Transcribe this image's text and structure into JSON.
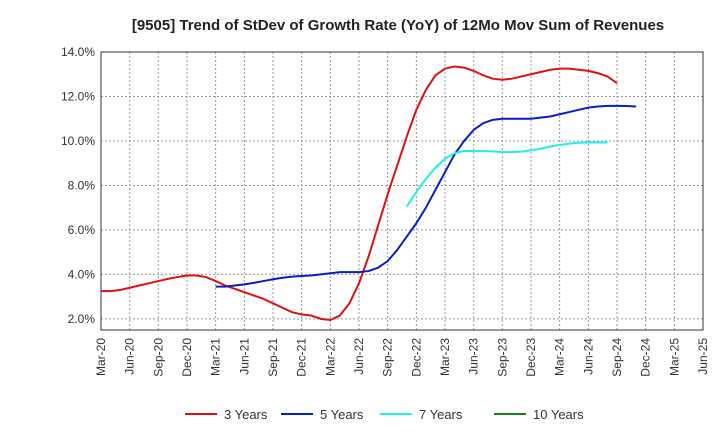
{
  "chart_data": {
    "type": "line",
    "title": "[9505]  Trend of StDev of Growth Rate (YoY) of 12Mo Mov Sum of Revenues",
    "xlabel": "",
    "ylabel": "",
    "ylim": [
      1.5,
      14.0
    ],
    "grid": true,
    "legend_position": "bottom",
    "x_ticks": [
      "Mar-20",
      "Jun-20",
      "Sep-20",
      "Dec-20",
      "Mar-21",
      "Jun-21",
      "Sep-21",
      "Dec-21",
      "Mar-22",
      "Jun-22",
      "Sep-22",
      "Dec-22",
      "Mar-23",
      "Jun-23",
      "Sep-23",
      "Dec-23",
      "Mar-24",
      "Jun-24",
      "Sep-24",
      "Dec-24",
      "Mar-25",
      "Jun-25"
    ],
    "y_ticks": [
      {
        "value": 2.0,
        "label": "2.0%"
      },
      {
        "value": 4.0,
        "label": "4.0%"
      },
      {
        "value": 6.0,
        "label": "6.0%"
      },
      {
        "value": 8.0,
        "label": "8.0%"
      },
      {
        "value": 10.0,
        "label": "10.0%"
      },
      {
        "value": 12.0,
        "label": "12.0%"
      },
      {
        "value": 14.0,
        "label": "14.0%"
      }
    ],
    "series": [
      {
        "name": "3 Years",
        "color": "#dd1111",
        "start_index": 0,
        "values": [
          3.25,
          3.25,
          3.3,
          3.4,
          3.5,
          3.6,
          3.7,
          3.8,
          3.88,
          3.95,
          3.95,
          3.88,
          3.7,
          3.5,
          3.35,
          3.2,
          3.05,
          2.9,
          2.7,
          2.5,
          2.3,
          2.2,
          2.15,
          2.0,
          1.95,
          2.15,
          2.7,
          3.6,
          4.8,
          6.2,
          7.6,
          8.9,
          10.2,
          11.4,
          12.3,
          12.95,
          13.25,
          13.35,
          13.3,
          13.15,
          12.95,
          12.8,
          12.75,
          12.8,
          12.9,
          13.0,
          13.1,
          13.2,
          13.25,
          13.25,
          13.2,
          13.15,
          13.05,
          12.9,
          12.6
        ]
      },
      {
        "name": "5 Years",
        "color": "#0a1ec8",
        "start_index": 12,
        "values": [
          3.45,
          3.45,
          3.5,
          3.55,
          3.62,
          3.7,
          3.78,
          3.85,
          3.9,
          3.93,
          3.95,
          4.0,
          4.05,
          4.1,
          4.1,
          4.1,
          4.15,
          4.3,
          4.6,
          5.1,
          5.7,
          6.3,
          7.0,
          7.8,
          8.6,
          9.4,
          10.0,
          10.5,
          10.8,
          10.95,
          11.0,
          11.0,
          11.0,
          11.0,
          11.05,
          11.1,
          11.2,
          11.3,
          11.4,
          11.5,
          11.55,
          11.58,
          11.58,
          11.57,
          11.55
        ]
      },
      {
        "name": "7 Years",
        "color": "#22eeee",
        "start_index": 32,
        "values": [
          7.05,
          7.7,
          8.3,
          8.8,
          9.2,
          9.45,
          9.55,
          9.55,
          9.55,
          9.53,
          9.5,
          9.5,
          9.52,
          9.58,
          9.65,
          9.75,
          9.82,
          9.88,
          9.92,
          9.93,
          9.93,
          9.93
        ]
      },
      {
        "name": "10 Years",
        "color": "#118811",
        "start_index": 0,
        "values": []
      }
    ]
  }
}
